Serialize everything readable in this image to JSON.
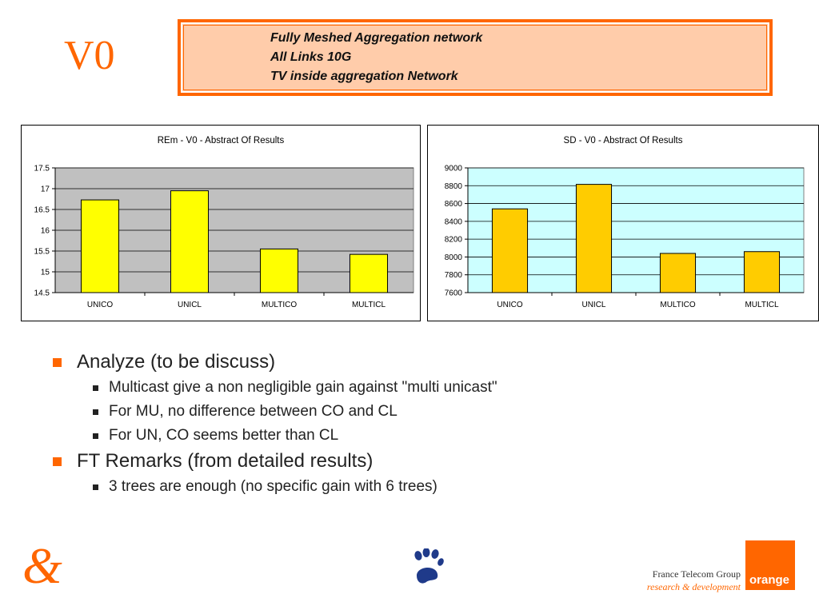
{
  "slide": {
    "label": "V0"
  },
  "header": {
    "lines": [
      "Fully Meshed Aggregation network",
      "All Links 10G",
      "TV inside aggregation Network"
    ]
  },
  "chart_data": [
    {
      "type": "bar",
      "title": "REm - V0 - Abstract Of Results",
      "categories": [
        "UNICO",
        "UNICL",
        "MULTICO",
        "MULTICL"
      ],
      "values": [
        16.73,
        16.95,
        15.55,
        15.42
      ],
      "ylim": [
        14.5,
        17.5
      ],
      "yticks": [
        "17.5",
        "17",
        "16.5",
        "16",
        "15.5",
        "15",
        "14.5"
      ],
      "grid": true,
      "legend": "none",
      "colors": {
        "plot_bg": "#c0c0c0",
        "bar": "#ffff00",
        "bar_stroke": "#000000"
      }
    },
    {
      "type": "bar",
      "title": "SD - V0 - Abstract Of Results",
      "categories": [
        "UNICO",
        "UNICL",
        "MULTICO",
        "MULTICL"
      ],
      "values": [
        8540,
        8815,
        8040,
        8060
      ],
      "ylim": [
        7600,
        9000
      ],
      "yticks": [
        "9000",
        "8800",
        "8600",
        "8400",
        "8200",
        "8000",
        "7800",
        "7600"
      ],
      "grid": true,
      "legend": "none",
      "colors": {
        "plot_bg": "#ccffff",
        "bar": "#ffcc00",
        "bar_stroke": "#000000"
      }
    }
  ],
  "bullets": [
    {
      "text": "Analyze (to be discuss)",
      "children": [
        "Multicast give a non negligible gain against \"multi unicast\"",
        "For MU, no difference between CO and CL",
        "For UN, CO seems better than CL"
      ]
    },
    {
      "text": "FT Remarks (from detailed results)",
      "children": [
        "3 trees are enough (no specific gain with 6 trees)"
      ]
    }
  ],
  "footer": {
    "company": "France Telecom Group",
    "department": "research & development",
    "brand": "orange",
    "icons": [
      "ampersand-logo",
      "paw-icon"
    ]
  },
  "colors": {
    "accent": "#ff6600",
    "header_fill": "#ffccaa"
  }
}
